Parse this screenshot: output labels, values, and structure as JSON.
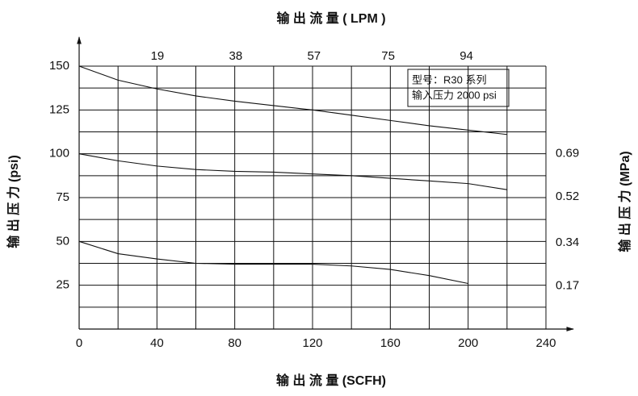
{
  "chart_data": {
    "type": "line",
    "x_label": "输 出 流 量 (SCFH)",
    "x2_label": "输 出 流 量 ( LPM )",
    "y_label": "输 出 压 力 (psi)",
    "y2_label": "输 出 压 力 (MPa)",
    "annotations": [
      "型号：R30 系列",
      "输入压力   2000 psi"
    ],
    "x": [
      0,
      20,
      40,
      60,
      80,
      100,
      120,
      140,
      160,
      180,
      200,
      220
    ],
    "series": [
      {
        "color": "#111111",
        "values": [
          150,
          142,
          137,
          133,
          130,
          127.5,
          125,
          122,
          119,
          116,
          113.5,
          111
        ]
      },
      {
        "color": "#111111",
        "values": [
          100,
          96,
          93,
          91,
          90,
          89.5,
          88.5,
          87.5,
          86,
          84.5,
          83,
          79.5
        ]
      },
      {
        "color": "#111111",
        "values": [
          50,
          43,
          40,
          37.5,
          37,
          37,
          37,
          36,
          34,
          30.5,
          26,
          null
        ]
      }
    ],
    "xlim": [
      0,
      240
    ],
    "xticks": [
      0,
      40,
      80,
      120,
      160,
      200,
      240
    ],
    "xgrid": [
      20,
      40,
      60,
      80,
      100,
      120,
      140,
      160,
      180,
      200,
      220,
      240
    ],
    "x2lim": [
      0,
      113.3
    ],
    "x2ticks": [
      19,
      38,
      57,
      75,
      94
    ],
    "ylim": [
      0,
      150
    ],
    "yticks": [
      25,
      50,
      75,
      100,
      125,
      150
    ],
    "ygrid": [
      12.5,
      25,
      37.5,
      50,
      62.5,
      75,
      87.5,
      100,
      112.5,
      125,
      137.5,
      150
    ],
    "y2lim": [
      0,
      1.034
    ],
    "y2ticks": [
      0.17,
      0.34,
      0.52,
      0.69
    ],
    "grid": true
  }
}
